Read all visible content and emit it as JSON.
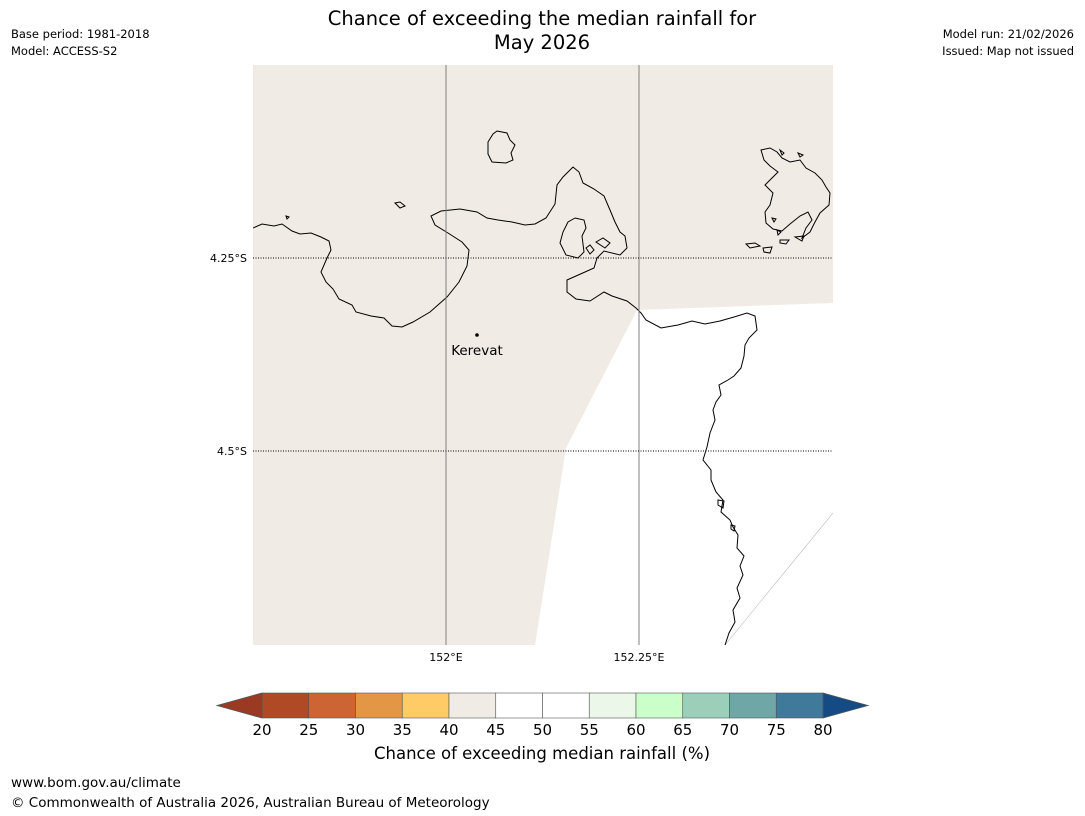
{
  "header": {
    "title_line1": "Chance of exceeding the median rainfall for",
    "title_line2": "May 2026",
    "base_period": "Base period: 1981-2018",
    "model": "Model: ACCESS-S2",
    "model_run": "Model run: 21/02/2026",
    "issued": "Issued: Map not issued"
  },
  "map": {
    "lon_ticks": [
      {
        "value": 152.0,
        "label": "152°E"
      },
      {
        "value": 152.25,
        "label": "152.25°E"
      }
    ],
    "lat_ticks": [
      {
        "value": -4.25,
        "label": "4.25°S"
      },
      {
        "value": -4.5,
        "label": "4.5°S"
      }
    ],
    "places": [
      {
        "name": "Kerevat",
        "lon": 152.04,
        "lat": -4.35
      }
    ],
    "colors": {
      "fill_40_45": "#f0ebe5",
      "fill_50_55": "#ffffff",
      "coastline": "#000000",
      "meridian": "#808080",
      "parallel": "#000000"
    }
  },
  "colorbar": {
    "label": "Chance of exceeding median rainfall (%)",
    "ticks": [
      "20",
      "25",
      "30",
      "35",
      "40",
      "45",
      "50",
      "55",
      "60",
      "65",
      "70",
      "75",
      "80"
    ],
    "under_color": "#9a3a22",
    "over_color": "#144b85",
    "colors": [
      "#b04a24",
      "#cc6533",
      "#e39646",
      "#fecb67",
      "#f0ebe5",
      "#ffffff",
      "#ffffff",
      "#eaf7e9",
      "#caffca",
      "#9ccfb9",
      "#6fa6a6",
      "#3f7a9b"
    ]
  },
  "footer": {
    "url": "www.bom.gov.au/climate",
    "copyright": "© Commonwealth of Australia 2026, Australian Bureau of Meteorology"
  }
}
